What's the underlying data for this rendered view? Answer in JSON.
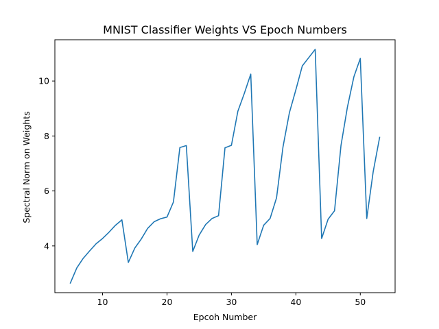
{
  "chart_data": {
    "type": "line",
    "title": "MNIST Classifier Weights VS Epoch Numbers",
    "xlabel": "Epcoh Number",
    "ylabel": "Spectral Norm on Weights",
    "xlim": [
      2.6,
      55.4
    ],
    "ylim": [
      2.3,
      11.5
    ],
    "xticks": [
      10,
      20,
      30,
      40,
      50
    ],
    "yticks": [
      4,
      6,
      8,
      10
    ],
    "grid": false,
    "series": [
      {
        "color": "#1f77b4",
        "x": [
          5,
          6,
          7,
          8,
          9,
          10,
          11,
          12,
          13,
          14,
          15,
          16,
          17,
          18,
          19,
          20,
          21,
          22,
          23,
          24,
          25,
          26,
          27,
          28,
          29,
          30,
          31,
          32,
          33,
          34,
          35,
          36,
          37,
          38,
          39,
          40,
          41,
          42,
          43,
          44,
          45,
          46,
          47,
          48,
          49,
          50,
          51,
          52,
          53
        ],
        "y": [
          2.65,
          3.2,
          3.55,
          3.82,
          4.08,
          4.27,
          4.5,
          4.75,
          4.95,
          3.4,
          3.92,
          4.25,
          4.64,
          4.88,
          4.99,
          5.05,
          5.6,
          7.58,
          7.65,
          3.8,
          4.4,
          4.78,
          5.0,
          5.1,
          7.57,
          7.66,
          8.9,
          9.55,
          10.25,
          4.05,
          4.75,
          5.0,
          5.75,
          7.6,
          8.85,
          9.68,
          10.55,
          10.85,
          11.15,
          4.27,
          4.97,
          5.28,
          7.65,
          9.05,
          10.15,
          10.82,
          5.0,
          6.7,
          7.95
        ]
      }
    ]
  }
}
